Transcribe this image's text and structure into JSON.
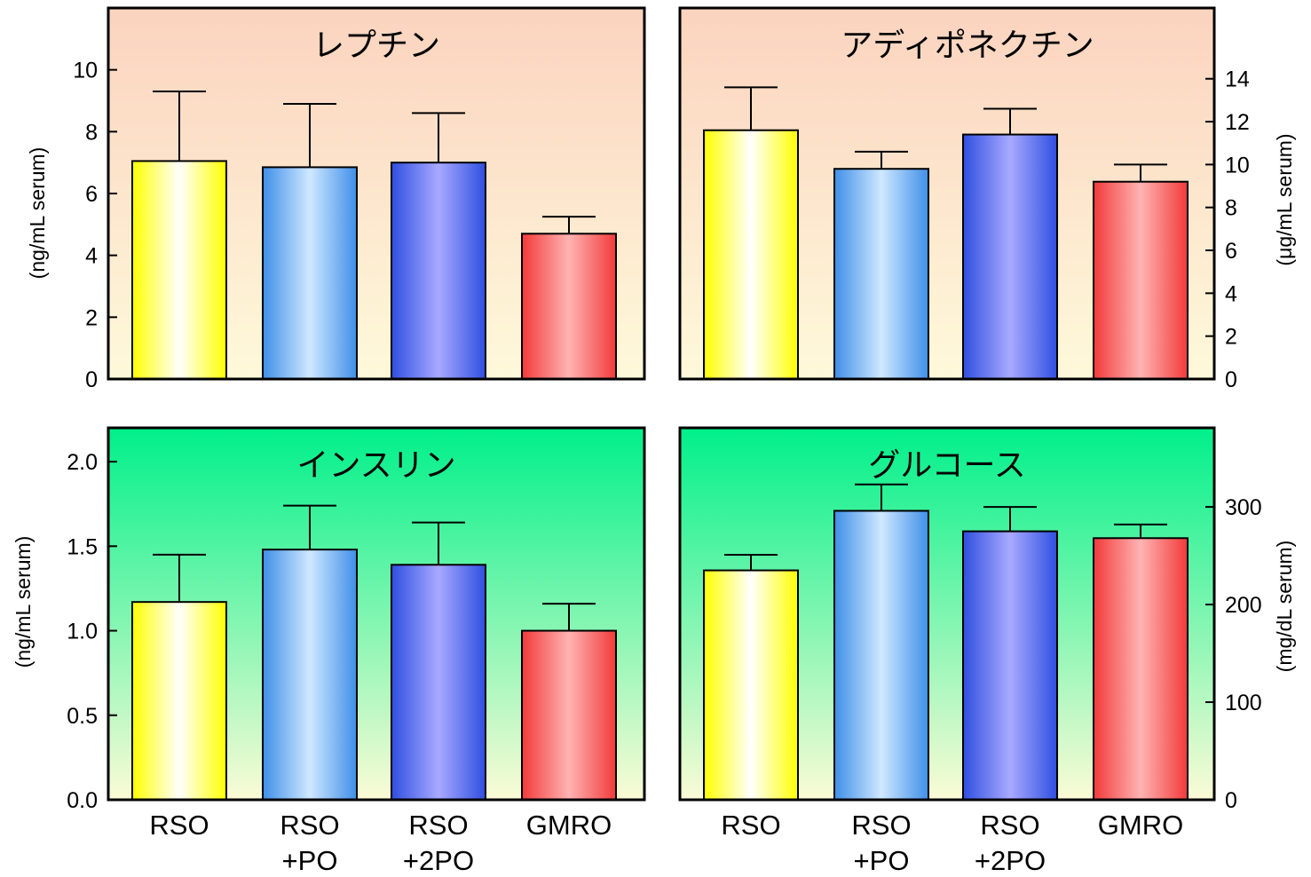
{
  "chart_data": [
    {
      "type": "bar",
      "title": "レプチン",
      "categories": [
        "RSO",
        "RSO +PO",
        "RSO +2PO",
        "GMRO"
      ],
      "values": [
        7.05,
        6.85,
        7.0,
        4.7
      ],
      "errors": [
        2.25,
        2.05,
        1.6,
        0.55
      ],
      "ylabel": "(ng/mL serum)",
      "ylim": [
        0,
        12
      ],
      "yticks": [
        "0",
        "2",
        "4",
        "6",
        "8",
        "10"
      ],
      "ytick_values": [
        0,
        2,
        4,
        6,
        8,
        10
      ],
      "axis_side": "left",
      "background": "peach-to-cream-gradient"
    },
    {
      "type": "bar",
      "title": "アディポネクチン",
      "categories": [
        "RSO",
        "RSO +PO",
        "RSO +2PO",
        "GMRO"
      ],
      "values": [
        11.6,
        9.8,
        11.4,
        9.2
      ],
      "errors": [
        2.0,
        0.8,
        1.2,
        0.8
      ],
      "ylabel": "(μg/mL serum)",
      "ylim": [
        0,
        17.3
      ],
      "yticks": [
        "0",
        "2",
        "4",
        "6",
        "8",
        "10",
        "12",
        "14"
      ],
      "ytick_values": [
        0,
        2,
        4,
        6,
        8,
        10,
        12,
        14
      ],
      "axis_side": "right",
      "background": "peach-to-cream-gradient"
    },
    {
      "type": "bar",
      "title": "インスリン",
      "categories": [
        "RSO",
        "RSO +PO",
        "RSO +2PO",
        "GMRO"
      ],
      "values": [
        1.17,
        1.48,
        1.39,
        1.0
      ],
      "errors": [
        0.28,
        0.26,
        0.25,
        0.16
      ],
      "ylabel": "(ng/mL serum)",
      "ylim": [
        0,
        2.2
      ],
      "yticks": [
        "0.0",
        "0.5",
        "1.0",
        "1.5",
        "2.0"
      ],
      "ytick_values": [
        0,
        0.5,
        1.0,
        1.5,
        2.0
      ],
      "axis_side": "left",
      "background": "green-to-cream-gradient"
    },
    {
      "type": "bar",
      "title": "グルコース",
      "categories": [
        "RSO",
        "RSO +PO",
        "RSO +2PO",
        "GMRO"
      ],
      "values": [
        235,
        296,
        275,
        268
      ],
      "errors": [
        16,
        27,
        25,
        14
      ],
      "ylabel": "(mg/dL serum)",
      "ylim": [
        0,
        381
      ],
      "yticks": [
        "0",
        "100",
        "200",
        "300"
      ],
      "ytick_values": [
        0,
        100,
        200,
        300
      ],
      "axis_side": "right",
      "background": "green-to-cream-gradient"
    }
  ],
  "x_labels": [
    {
      "line1": "RSO",
      "line2": ""
    },
    {
      "line1": "RSO",
      "line2": "+PO"
    },
    {
      "line1": "RSO",
      "line2": "+2PO"
    },
    {
      "line1": "GMRO",
      "line2": ""
    }
  ],
  "colors": {
    "rso_edge": "#ffff00",
    "rso_center": "#ffffff",
    "po_edge": "#3f8fe8",
    "po_center": "#cfe8ff",
    "po2_edge": "#2f4fe0",
    "po2_center": "#a9a9ff",
    "gmro_edge": "#f23a3a",
    "gmro_center": "#ffb3b3",
    "peach_top": "#fbd3bf",
    "peach_bottom": "#fef9da",
    "green_top": "#00f08a",
    "green_bottom": "#fbfbd6"
  }
}
